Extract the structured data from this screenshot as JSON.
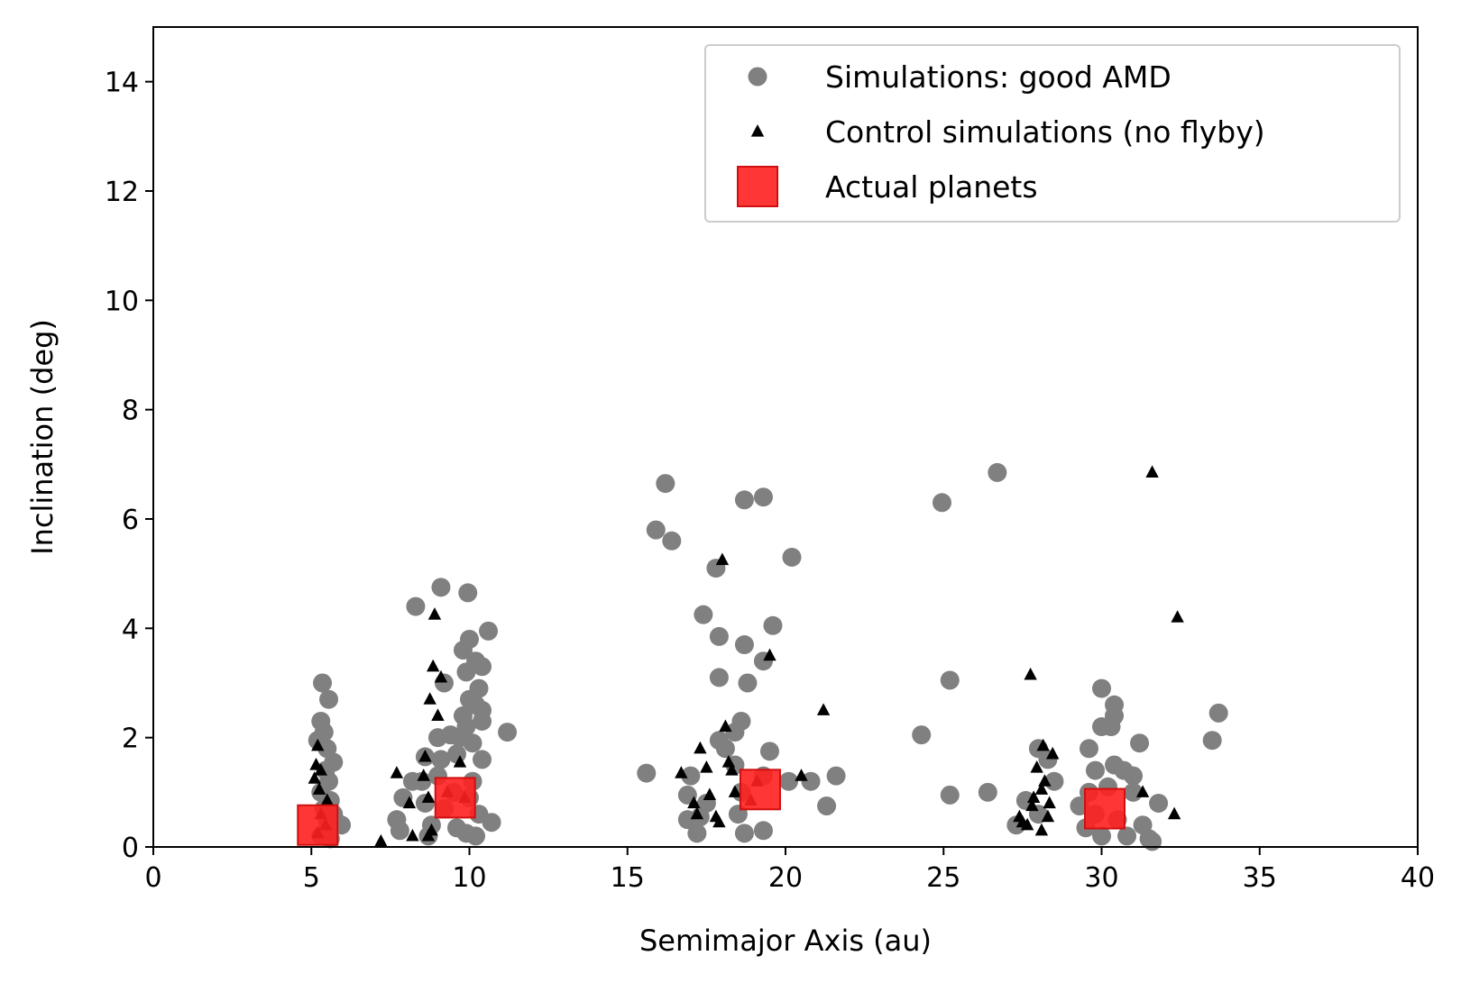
{
  "chart_data": {
    "type": "scatter",
    "title": "",
    "xlabel": "Semimajor Axis (au)",
    "ylabel": "Inclination (deg)",
    "xlim": [
      0,
      40
    ],
    "ylim": [
      0,
      15
    ],
    "xticks": [
      0,
      5,
      10,
      15,
      20,
      25,
      30,
      35,
      40
    ],
    "yticks": [
      0,
      2,
      4,
      6,
      8,
      10,
      12,
      14
    ],
    "grid": false,
    "legend_position": "top-right",
    "colors": {
      "simulations": "#808080",
      "control": "#000000",
      "actual": "#ff2020"
    },
    "series": [
      {
        "name": "Simulations: good AMD",
        "marker": "circle",
        "points": [
          [
            5.35,
            3.0
          ],
          [
            5.55,
            2.7
          ],
          [
            5.3,
            2.3
          ],
          [
            5.4,
            2.1
          ],
          [
            5.2,
            1.95
          ],
          [
            5.5,
            1.8
          ],
          [
            5.7,
            1.55
          ],
          [
            5.45,
            1.4
          ],
          [
            5.55,
            1.2
          ],
          [
            5.3,
            1.0
          ],
          [
            5.6,
            0.85
          ],
          [
            5.4,
            0.7
          ],
          [
            5.7,
            0.6
          ],
          [
            5.5,
            0.5
          ],
          [
            5.8,
            0.45
          ],
          [
            5.95,
            0.4
          ],
          [
            5.5,
            0.3
          ],
          [
            5.3,
            0.2
          ],
          [
            5.6,
            0.15
          ],
          [
            8.3,
            4.4
          ],
          [
            9.1,
            4.75
          ],
          [
            9.95,
            4.65
          ],
          [
            10.6,
            3.95
          ],
          [
            10.0,
            3.8
          ],
          [
            9.8,
            3.6
          ],
          [
            10.2,
            3.4
          ],
          [
            10.4,
            3.3
          ],
          [
            9.9,
            3.2
          ],
          [
            9.2,
            3.0
          ],
          [
            10.3,
            2.9
          ],
          [
            10.0,
            2.7
          ],
          [
            10.2,
            2.6
          ],
          [
            10.4,
            2.5
          ],
          [
            9.8,
            2.4
          ],
          [
            10.4,
            2.3
          ],
          [
            9.9,
            2.2
          ],
          [
            11.2,
            2.1
          ],
          [
            9.0,
            2.0
          ],
          [
            9.4,
            2.05
          ],
          [
            9.7,
            2.0
          ],
          [
            10.1,
            1.9
          ],
          [
            8.6,
            1.65
          ],
          [
            9.1,
            1.6
          ],
          [
            9.6,
            1.7
          ],
          [
            10.4,
            1.6
          ],
          [
            8.5,
            1.2
          ],
          [
            9.0,
            1.3
          ],
          [
            10.1,
            1.2
          ],
          [
            8.2,
            1.2
          ],
          [
            9.5,
            1.0
          ],
          [
            10.0,
            0.9
          ],
          [
            7.9,
            0.9
          ],
          [
            8.6,
            0.8
          ],
          [
            9.2,
            0.7
          ],
          [
            10.3,
            0.6
          ],
          [
            7.7,
            0.5
          ],
          [
            8.8,
            0.4
          ],
          [
            9.6,
            0.35
          ],
          [
            10.7,
            0.45
          ],
          [
            7.8,
            0.3
          ],
          [
            9.9,
            0.25
          ],
          [
            8.7,
            0.2
          ],
          [
            10.2,
            0.2
          ],
          [
            16.2,
            6.65
          ],
          [
            15.9,
            5.8
          ],
          [
            16.4,
            5.6
          ],
          [
            18.7,
            6.35
          ],
          [
            19.3,
            6.4
          ],
          [
            17.8,
            5.1
          ],
          [
            20.2,
            5.3
          ],
          [
            17.4,
            4.25
          ],
          [
            17.9,
            3.85
          ],
          [
            18.7,
            3.7
          ],
          [
            19.6,
            4.05
          ],
          [
            19.3,
            3.4
          ],
          [
            17.9,
            3.1
          ],
          [
            18.8,
            3.0
          ],
          [
            18.6,
            2.3
          ],
          [
            18.4,
            2.1
          ],
          [
            17.9,
            1.95
          ],
          [
            19.5,
            1.75
          ],
          [
            18.1,
            1.8
          ],
          [
            15.6,
            1.35
          ],
          [
            17.0,
            1.3
          ],
          [
            18.4,
            1.5
          ],
          [
            19.3,
            1.3
          ],
          [
            20.1,
            1.2
          ],
          [
            20.8,
            1.2
          ],
          [
            21.6,
            1.3
          ],
          [
            16.9,
            0.95
          ],
          [
            18.6,
            1.0
          ],
          [
            17.5,
            0.8
          ],
          [
            21.3,
            0.75
          ],
          [
            16.9,
            0.5
          ],
          [
            17.3,
            0.55
          ],
          [
            18.5,
            0.6
          ],
          [
            17.2,
            0.25
          ],
          [
            18.7,
            0.25
          ],
          [
            19.3,
            0.3
          ],
          [
            24.3,
            2.05
          ],
          [
            24.95,
            6.3
          ],
          [
            25.2,
            3.05
          ],
          [
            25.2,
            0.95
          ],
          [
            26.4,
            1.0
          ],
          [
            26.7,
            6.85
          ],
          [
            28.0,
            1.8
          ],
          [
            28.3,
            1.6
          ],
          [
            28.5,
            1.2
          ],
          [
            27.6,
            0.85
          ],
          [
            28.0,
            0.6
          ],
          [
            27.3,
            0.4
          ],
          [
            29.6,
            1.8
          ],
          [
            30.0,
            2.9
          ],
          [
            30.4,
            2.6
          ],
          [
            30.4,
            2.4
          ],
          [
            30.0,
            2.2
          ],
          [
            30.3,
            2.2
          ],
          [
            31.2,
            1.9
          ],
          [
            29.8,
            1.4
          ],
          [
            30.4,
            1.5
          ],
          [
            30.7,
            1.4
          ],
          [
            31.0,
            1.3
          ],
          [
            29.6,
            1.0
          ],
          [
            30.2,
            1.1
          ],
          [
            31.0,
            1.0
          ],
          [
            31.8,
            0.8
          ],
          [
            29.3,
            0.75
          ],
          [
            29.8,
            0.6
          ],
          [
            30.5,
            0.5
          ],
          [
            31.3,
            0.4
          ],
          [
            29.5,
            0.35
          ],
          [
            30.0,
            0.2
          ],
          [
            31.5,
            0.15
          ],
          [
            30.8,
            0.2
          ],
          [
            31.6,
            0.1
          ],
          [
            33.5,
            1.95
          ],
          [
            33.7,
            2.45
          ]
        ]
      },
      {
        "name": "Control simulations (no flyby)",
        "marker": "triangle",
        "points": [
          [
            5.2,
            1.85
          ],
          [
            5.15,
            1.5
          ],
          [
            5.3,
            1.4
          ],
          [
            5.1,
            1.25
          ],
          [
            5.25,
            1.05
          ],
          [
            5.5,
            0.85
          ],
          [
            5.3,
            0.6
          ],
          [
            5.45,
            0.4
          ],
          [
            5.2,
            0.25
          ],
          [
            7.2,
            0.1
          ],
          [
            7.7,
            1.35
          ],
          [
            8.1,
            0.8
          ],
          [
            8.2,
            0.2
          ],
          [
            8.6,
            1.65
          ],
          [
            8.55,
            1.3
          ],
          [
            8.7,
            0.9
          ],
          [
            8.8,
            0.3
          ],
          [
            8.7,
            0.2
          ],
          [
            8.75,
            2.7
          ],
          [
            8.85,
            3.3
          ],
          [
            8.9,
            4.25
          ],
          [
            9.1,
            3.1
          ],
          [
            9.0,
            2.4
          ],
          [
            9.3,
            1.0
          ],
          [
            9.7,
            1.55
          ],
          [
            9.85,
            0.9
          ],
          [
            16.7,
            1.35
          ],
          [
            17.1,
            0.8
          ],
          [
            17.2,
            0.6
          ],
          [
            17.3,
            1.8
          ],
          [
            17.5,
            1.45
          ],
          [
            17.6,
            0.95
          ],
          [
            17.8,
            0.55
          ],
          [
            17.9,
            0.45
          ],
          [
            18.0,
            5.25
          ],
          [
            18.1,
            2.2
          ],
          [
            18.2,
            1.55
          ],
          [
            18.3,
            1.4
          ],
          [
            18.4,
            1.0
          ],
          [
            18.9,
            0.85
          ],
          [
            19.1,
            1.2
          ],
          [
            19.5,
            3.5
          ],
          [
            20.5,
            1.3
          ],
          [
            21.2,
            2.5
          ],
          [
            27.4,
            0.55
          ],
          [
            27.5,
            0.45
          ],
          [
            27.65,
            0.4
          ],
          [
            27.75,
            3.15
          ],
          [
            27.8,
            0.75
          ],
          [
            27.85,
            0.9
          ],
          [
            27.95,
            1.45
          ],
          [
            28.1,
            1.05
          ],
          [
            28.1,
            0.3
          ],
          [
            28.15,
            1.85
          ],
          [
            28.2,
            1.2
          ],
          [
            28.3,
            0.55
          ],
          [
            28.35,
            0.8
          ],
          [
            28.45,
            1.7
          ],
          [
            31.3,
            1.0
          ],
          [
            31.6,
            6.85
          ],
          [
            32.3,
            0.6
          ],
          [
            32.4,
            4.2
          ]
        ]
      },
      {
        "name": "Actual planets",
        "marker": "square",
        "points": [
          [
            5.2,
            0.4
          ],
          [
            9.55,
            0.9
          ],
          [
            19.2,
            1.05
          ],
          [
            30.1,
            0.7
          ]
        ]
      }
    ]
  }
}
